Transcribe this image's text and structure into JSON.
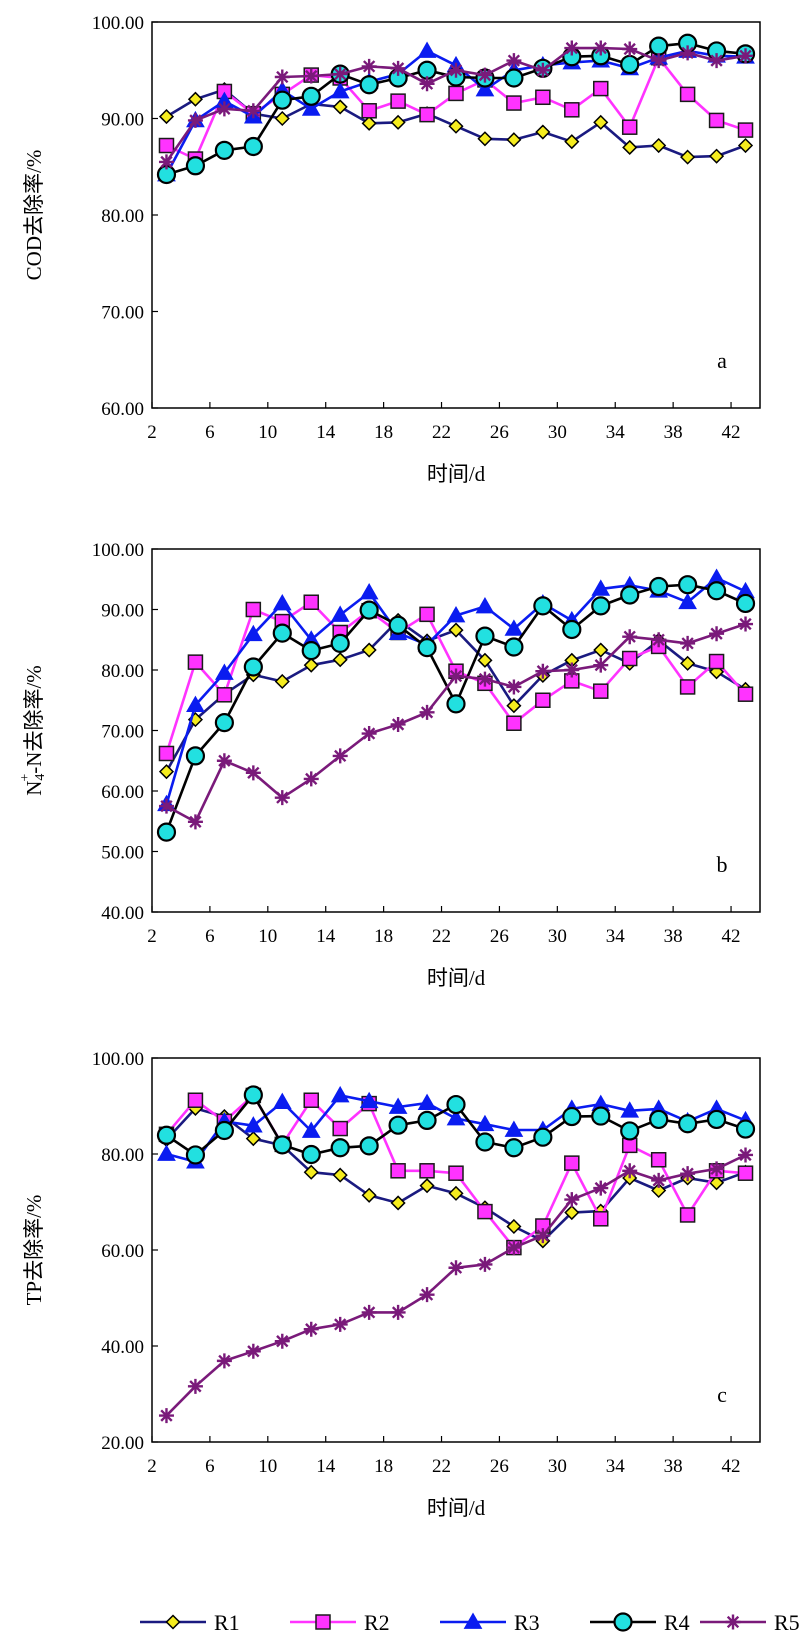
{
  "series_style": [
    {
      "name": "R1",
      "color": "#1a1a80",
      "marker": "diamond",
      "fill": "#f5ec1e"
    },
    {
      "name": "R2",
      "color": "#ff33ff",
      "marker": "square",
      "fill": "#ff33ff"
    },
    {
      "name": "R3",
      "color": "#0a1cf0",
      "marker": "triangle",
      "fill": "#0a1cf0"
    },
    {
      "name": "R4",
      "color": "#000000",
      "marker": "circle",
      "fill": "#22e0e0"
    },
    {
      "name": "R5",
      "color": "#7a1a7a",
      "marker": "star",
      "fill": "#7a1a7a"
    }
  ],
  "chart_data": [
    {
      "type": "line",
      "panel_label": "a",
      "xlabel": "时间/d",
      "ylabel": "COD去除率/%",
      "ylabel_parts": [],
      "xlim": [
        2,
        44
      ],
      "ylim": [
        60,
        100
      ],
      "xticks": [
        "2",
        "6",
        "10",
        "14",
        "18",
        "22",
        "26",
        "30",
        "34",
        "38",
        "42"
      ],
      "yticks": [
        "60.00",
        "70.00",
        "80.00",
        "90.00",
        "100.00"
      ],
      "x": [
        3,
        5,
        7,
        9,
        11,
        13,
        15,
        17,
        19,
        21,
        23,
        25,
        27,
        29,
        31,
        33,
        35,
        37,
        39,
        41,
        43
      ],
      "series": [
        {
          "name": "R1",
          "values": [
            90.2,
            92.0,
            93.0,
            90.5,
            90.0,
            91.5,
            91.2,
            89.5,
            89.6,
            90.5,
            89.2,
            87.9,
            87.8,
            88.6,
            87.6,
            89.6,
            87.0,
            87.2,
            86.0,
            86.1,
            87.2
          ]
        },
        {
          "name": "R2",
          "values": [
            87.2,
            85.8,
            92.8,
            90.5,
            92.5,
            94.5,
            94.2,
            90.8,
            91.8,
            90.4,
            92.6,
            94.0,
            91.6,
            92.2,
            90.9,
            93.1,
            89.1,
            96.3,
            92.5,
            89.8,
            88.8
          ]
        },
        {
          "name": "R3",
          "values": [
            84.2,
            89.8,
            91.8,
            90.2,
            92.9,
            91.0,
            92.8,
            93.8,
            94.6,
            97.0,
            95.5,
            93.0,
            95.0,
            95.5,
            95.8,
            96.0,
            95.2,
            96.3,
            97.0,
            96.5,
            96.4
          ]
        },
        {
          "name": "R4",
          "values": [
            84.2,
            85.1,
            86.7,
            87.1,
            91.9,
            92.3,
            94.6,
            93.5,
            94.2,
            95.0,
            94.3,
            94.2,
            94.2,
            95.2,
            96.4,
            96.5,
            95.6,
            97.5,
            97.8,
            97.0,
            96.7
          ]
        },
        {
          "name": "R5",
          "values": [
            85.5,
            89.8,
            91.0,
            90.8,
            94.3,
            94.4,
            94.6,
            95.4,
            95.2,
            93.6,
            95.0,
            94.5,
            96.0,
            95.0,
            97.3,
            97.3,
            97.2,
            96.0,
            96.8,
            96.0,
            96.5
          ]
        }
      ]
    },
    {
      "type": "line",
      "panel_label": "b",
      "xlabel": "时间/d",
      "ylabel": "",
      "ylabel_parts": [
        "N",
        "4",
        "+",
        "-N去除率/%"
      ],
      "xlim": [
        2,
        44
      ],
      "ylim": [
        40,
        100
      ],
      "xticks": [
        "2",
        "6",
        "10",
        "14",
        "18",
        "22",
        "26",
        "30",
        "34",
        "38",
        "42"
      ],
      "yticks": [
        "40.00",
        "50.00",
        "60.00",
        "70.00",
        "80.00",
        "90.00",
        "100.00"
      ],
      "x": [
        3,
        5,
        7,
        9,
        11,
        13,
        15,
        17,
        19,
        21,
        23,
        25,
        27,
        29,
        31,
        33,
        35,
        37,
        39,
        41,
        43
      ],
      "series": [
        {
          "name": "R1",
          "values": [
            63.2,
            71.8,
            76.0,
            79.2,
            78.1,
            80.8,
            81.7,
            83.3,
            88.2,
            84.8,
            86.6,
            81.6,
            74.1,
            79.1,
            81.6,
            83.3,
            81.1,
            84.9,
            81.1,
            79.7,
            76.8
          ]
        },
        {
          "name": "R2",
          "values": [
            66.2,
            81.3,
            75.9,
            90.0,
            88.0,
            91.2,
            86.2,
            89.8,
            86.2,
            89.2,
            79.8,
            77.8,
            71.2,
            75.0,
            78.2,
            76.5,
            81.9,
            83.9,
            77.2,
            81.4,
            76.0
          ]
        },
        {
          "name": "R3",
          "values": [
            57.8,
            74.2,
            79.5,
            85.9,
            91.0,
            85.0,
            89.1,
            92.8,
            86.1,
            84.2,
            89.0,
            90.5,
            86.8,
            91.0,
            88.2,
            93.4,
            94.0,
            93.1,
            91.2,
            95.2,
            93.0
          ]
        },
        {
          "name": "R4",
          "values": [
            53.2,
            65.8,
            71.3,
            80.5,
            86.1,
            83.2,
            84.4,
            89.9,
            87.4,
            83.7,
            74.4,
            85.6,
            83.8,
            90.6,
            86.7,
            90.6,
            92.4,
            93.8,
            94.1,
            93.1,
            91.0
          ]
        },
        {
          "name": "R5",
          "values": [
            57.5,
            54.9,
            65.0,
            63.0,
            58.9,
            62.0,
            65.8,
            69.5,
            71.0,
            73.0,
            79.0,
            78.5,
            77.2,
            79.8,
            80.0,
            80.8,
            85.5,
            85.0,
            84.4,
            86.0,
            87.6
          ]
        }
      ]
    },
    {
      "type": "line",
      "panel_label": "c",
      "xlabel": "时间/d",
      "ylabel": "TP去除率/%",
      "ylabel_parts": [],
      "xlim": [
        2,
        44
      ],
      "ylim": [
        20,
        100
      ],
      "xticks": [
        "2",
        "6",
        "10",
        "14",
        "18",
        "22",
        "26",
        "30",
        "34",
        "38",
        "42"
      ],
      "yticks": [
        "20.00",
        "40.00",
        "60.00",
        "80.00",
        "100.00"
      ],
      "x": [
        3,
        5,
        7,
        9,
        11,
        13,
        15,
        17,
        19,
        21,
        23,
        25,
        27,
        29,
        31,
        33,
        35,
        37,
        39,
        41,
        43
      ],
      "series": [
        {
          "name": "R1",
          "values": [
            83.0,
            89.5,
            87.8,
            83.2,
            81.8,
            76.2,
            75.6,
            71.4,
            69.8,
            73.4,
            71.8,
            68.8,
            64.9,
            61.9,
            67.8,
            68.1,
            75.0,
            72.4,
            75.0,
            74.0,
            76.2
          ]
        },
        {
          "name": "R2",
          "values": [
            84.1,
            91.2,
            86.8,
            92.2,
            82.0,
            91.2,
            85.3,
            90.5,
            76.5,
            76.5,
            76.0,
            68.0,
            60.5,
            65.0,
            78.1,
            66.5,
            81.8,
            78.8,
            67.3,
            76.5,
            76.0
          ]
        },
        {
          "name": "R3",
          "values": [
            80.0,
            78.4,
            86.8,
            85.9,
            90.8,
            84.8,
            92.2,
            91.0,
            89.8,
            90.6,
            87.4,
            86.2,
            85.0,
            85.0,
            89.4,
            90.4,
            89.0,
            89.4,
            86.8,
            89.4,
            87.0
          ]
        },
        {
          "name": "R4",
          "values": [
            83.9,
            79.8,
            84.9,
            92.3,
            81.9,
            79.9,
            81.3,
            81.7,
            86.0,
            87.0,
            90.3,
            82.5,
            81.3,
            83.5,
            87.8,
            87.9,
            84.8,
            87.2,
            86.3,
            87.2,
            85.2
          ]
        },
        {
          "name": "R5",
          "values": [
            25.5,
            31.6,
            36.9,
            38.9,
            41.0,
            43.5,
            44.5,
            47.0,
            47.0,
            50.7,
            56.3,
            57.0,
            60.5,
            63.0,
            70.5,
            72.9,
            76.5,
            74.5,
            75.9,
            76.9,
            79.8
          ]
        }
      ]
    }
  ]
}
